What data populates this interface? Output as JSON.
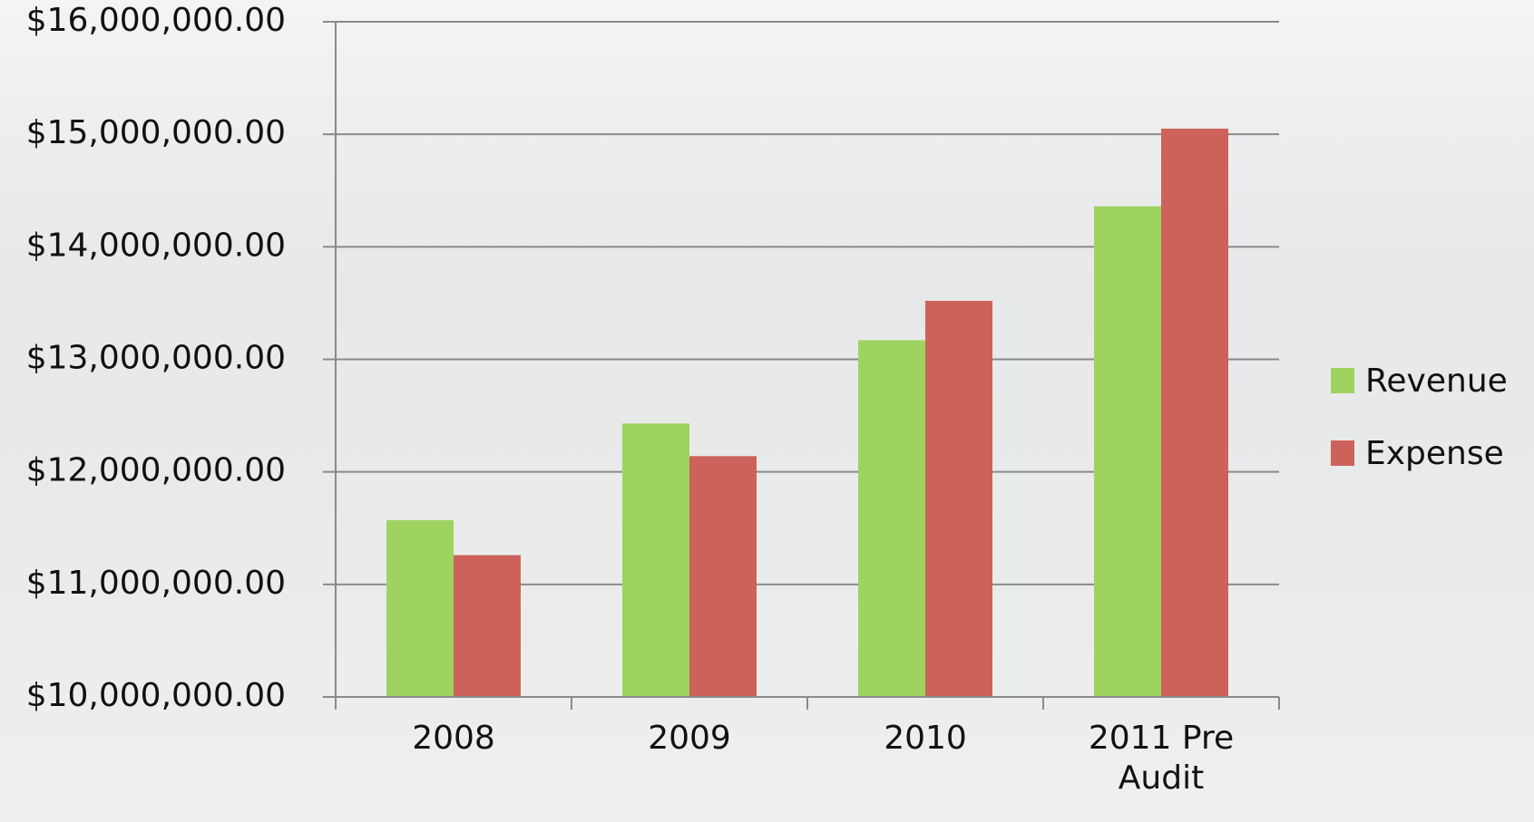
{
  "chart_data": {
    "type": "bar",
    "categories": [
      "2008",
      "2009",
      "2010",
      "2011 Pre Audit"
    ],
    "series": [
      {
        "name": "Revenue",
        "color": "#9fd35f",
        "values": [
          11570000,
          12430000,
          13170000,
          14360000
        ]
      },
      {
        "name": "Expense",
        "color": "#cd625a",
        "values": [
          11260000,
          12140000,
          13520000,
          15050000
        ]
      }
    ],
    "ylim": [
      10000000,
      16000000
    ],
    "yticks": [
      {
        "value": 10000000,
        "label": "$10,000,000.00"
      },
      {
        "value": 11000000,
        "label": "$11,000,000.00"
      },
      {
        "value": 12000000,
        "label": "$12,000,000.00"
      },
      {
        "value": 13000000,
        "label": "$13,000,000.00"
      },
      {
        "value": 14000000,
        "label": "$14,000,000.00"
      },
      {
        "value": 15000000,
        "label": "$15,000,000.00"
      },
      {
        "value": 16000000,
        "label": "$16,000,000.00"
      }
    ],
    "grid": true,
    "legend": "right"
  }
}
